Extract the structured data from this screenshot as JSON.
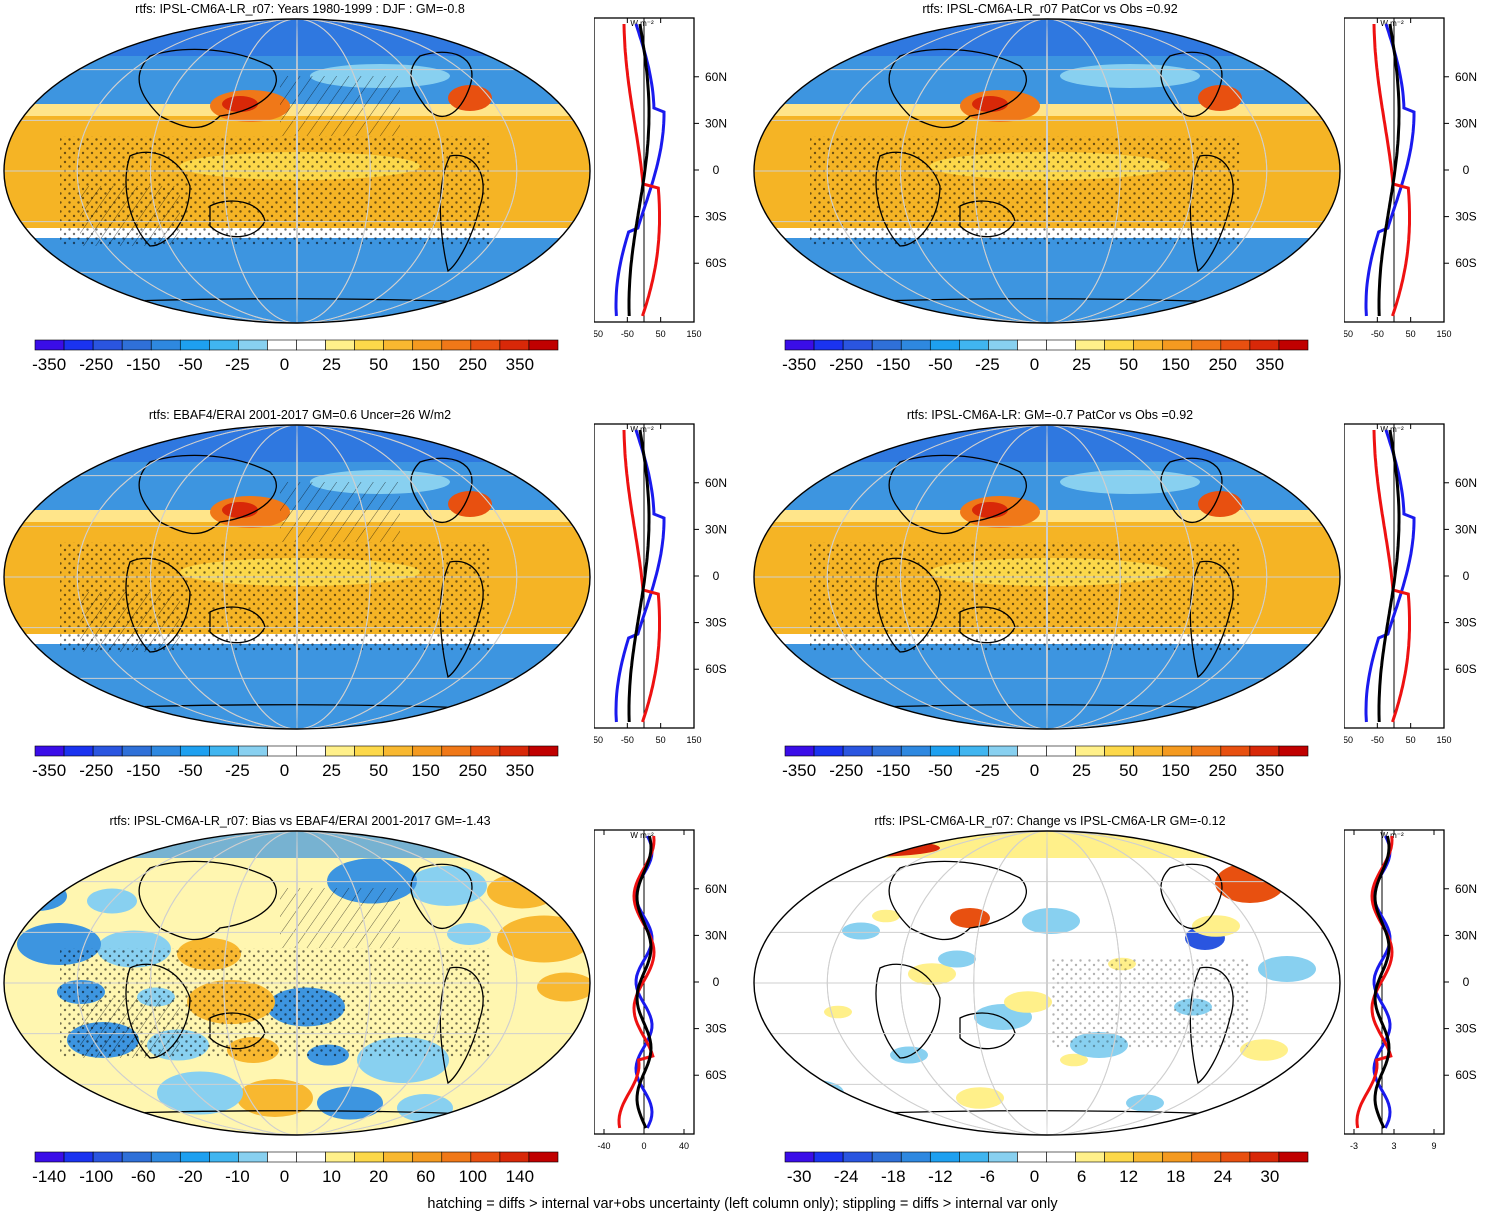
{
  "footer": "hatching = diffs > internal var+obs uncertainty (left column only); stippling = diffs > internal var only",
  "profile_unit": "W m⁻²",
  "lat_labels": [
    "60N",
    "30N",
    "0",
    "30S",
    "60S"
  ],
  "colors": {
    "profile_model": "#000000",
    "profile_obs_a": "#1a1aee",
    "profile_obs_b": "#ee1111",
    "ocean_cool": "#3d95e0",
    "ocean_warm": "#f5b425",
    "land_line": "#000000"
  },
  "palette": [
    "#3a0de8",
    "#1a33f0",
    "#2a55e0",
    "#2f70d8",
    "#2e88e0",
    "#1ea0f0",
    "#40b5f0",
    "#88d0f0",
    "#ffffff",
    "#ffffff",
    "#fff08a",
    "#fcd84a",
    "#f8b830",
    "#f49a20",
    "#f07818",
    "#e85010",
    "#d82808",
    "#c00000"
  ],
  "panels": [
    {
      "title": "rtfs: IPSL-CM6A-LR_r07: Years 1980-1999 : DJF : GM=-0.8",
      "cbar_labels": [
        "-350",
        "-250",
        "-150",
        "-50",
        "-25",
        "0",
        "25",
        "50",
        "150",
        "250",
        "350"
      ],
      "prof_ticks": [
        "-150",
        "-50",
        "50",
        "150"
      ],
      "variant": "mean"
    },
    {
      "title": "rtfs: IPSL-CM6A-LR_r07 PatCor vs Obs =0.92",
      "cbar_labels": [
        "-350",
        "-250",
        "-150",
        "-50",
        "-25",
        "0",
        "25",
        "50",
        "150",
        "250",
        "350"
      ],
      "prof_ticks": [
        "-150",
        "-50",
        "50",
        "150"
      ],
      "variant": "mean"
    },
    {
      "title": "rtfs: EBAF4/ERAI 2001-2017 GM=0.6 Uncer=26 W/m2",
      "cbar_labels": [
        "-350",
        "-250",
        "-150",
        "-50",
        "-25",
        "0",
        "25",
        "50",
        "150",
        "250",
        "350"
      ],
      "prof_ticks": [
        "-150",
        "-50",
        "50",
        "150"
      ],
      "variant": "mean"
    },
    {
      "title": "rtfs: IPSL-CM6A-LR: GM=-0.7 PatCor vs Obs =0.92",
      "cbar_labels": [
        "-350",
        "-250",
        "-150",
        "-50",
        "-25",
        "0",
        "25",
        "50",
        "150",
        "250",
        "350"
      ],
      "prof_ticks": [
        "-150",
        "-50",
        "50",
        "150"
      ],
      "variant": "mean"
    },
    {
      "title": "rtfs: IPSL-CM6A-LR_r07: Bias vs EBAF4/ERAI 2001-2017 GM=-1.43",
      "cbar_labels": [
        "-140",
        "-100",
        "-60",
        "-20",
        "-10",
        "0",
        "10",
        "20",
        "60",
        "100",
        "140"
      ],
      "prof_ticks": [
        "-40",
        "0",
        "40"
      ],
      "variant": "bias"
    },
    {
      "title": "rtfs: IPSL-CM6A-LR_r07: Change vs IPSL-CM6A-LR GM=-0.12",
      "cbar_labels": [
        "-30",
        "-24",
        "-18",
        "-12",
        "-6",
        "0",
        "6",
        "12",
        "18",
        "24",
        "30"
      ],
      "prof_ticks": [
        "-3",
        "3",
        "9"
      ],
      "variant": "change"
    }
  ]
}
